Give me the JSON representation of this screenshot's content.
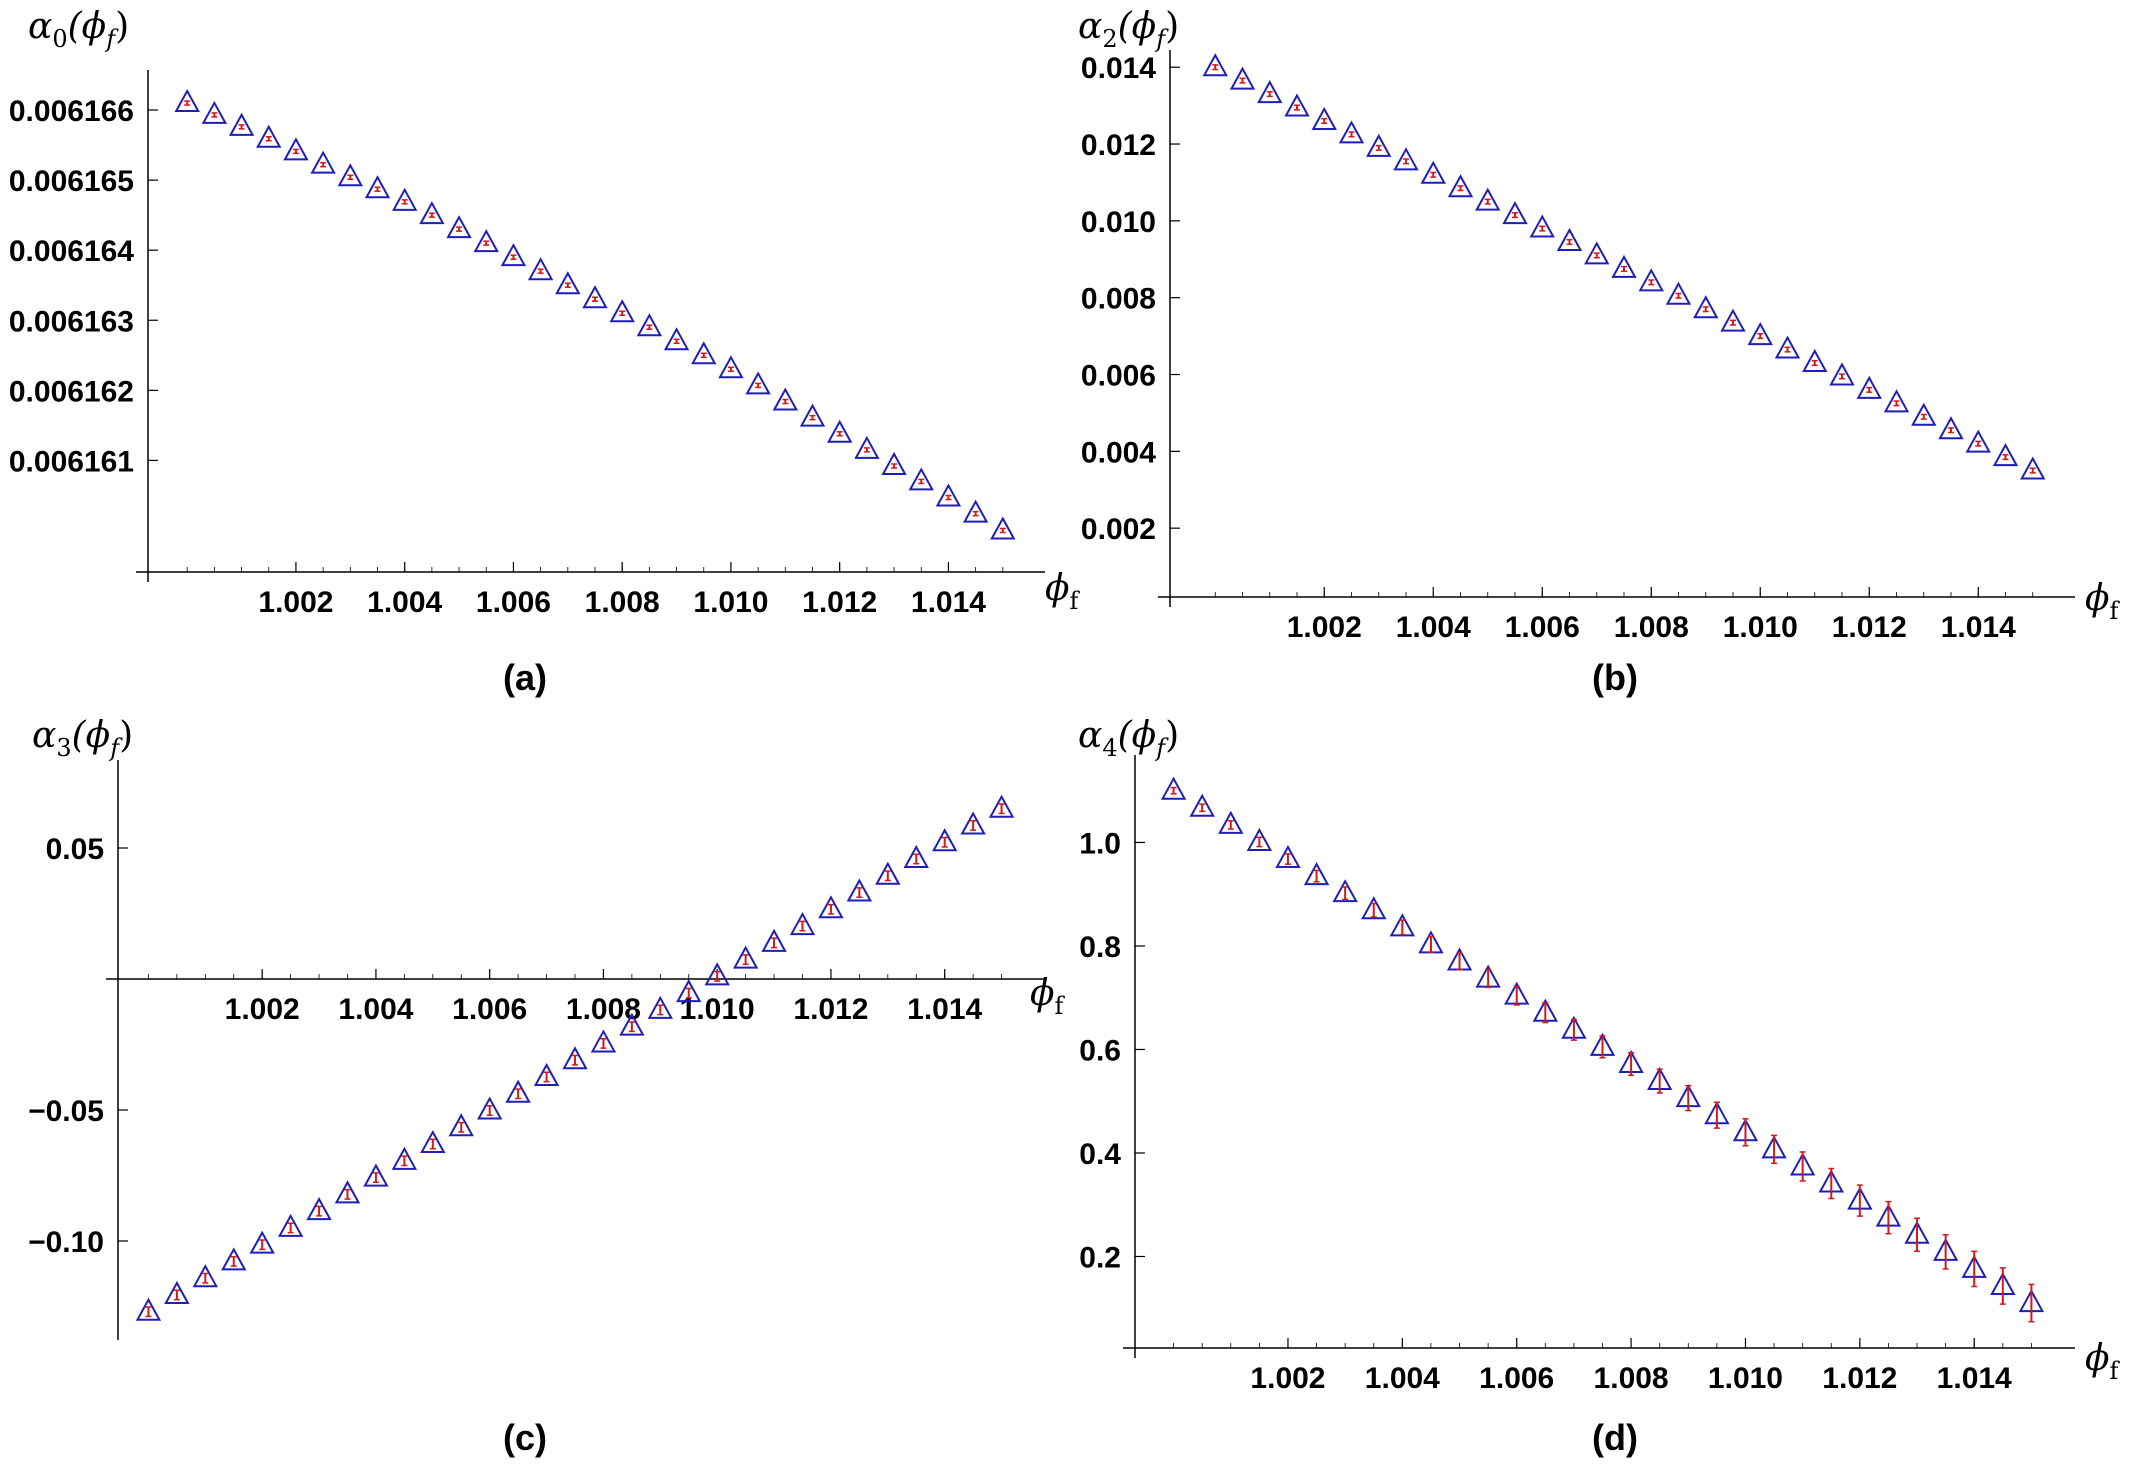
{
  "colors": {
    "marker_stroke": "#1f1fb8",
    "errorbar": "#d11a1a",
    "axis": "#000000",
    "background": "#ffffff"
  },
  "chart_data": [
    {
      "panel_label": "(a)",
      "type": "scatter",
      "ylabel": "α0(ϕf)",
      "ylabel_parts": {
        "base": "α",
        "sub": "0",
        "open": "(ϕ",
        "argsub": "f",
        "close": ")"
      },
      "xlabel_parts": {
        "base": "ϕ",
        "sub": "f"
      },
      "xlim": [
        0.9995,
        1.0155
      ],
      "ylim": [
        0.00615965,
        0.0061664
      ],
      "x_axis_at_y": 0.00615965,
      "x_ticks": [
        1.002,
        1.004,
        1.006,
        1.008,
        1.01,
        1.012,
        1.014
      ],
      "x_tick_labels": [
        "1.002",
        "1.004",
        "1.006",
        "1.008",
        "1.010",
        "1.012",
        "1.014"
      ],
      "y_ticks": [
        0.006161,
        0.006162,
        0.006163,
        0.006164,
        0.006165,
        0.006166
      ],
      "y_tick_labels": [
        "0.006161",
        "0.006162",
        "0.006163",
        "0.006164",
        "0.006165",
        "0.006166"
      ],
      "marker": "open-triangle",
      "series": [
        {
          "x": [
            1.0,
            1.0005,
            1.001,
            1.0015,
            1.002,
            1.0025,
            1.003,
            1.0035,
            1.004,
            1.0045,
            1.005,
            1.0055,
            1.006,
            1.0065,
            1.007,
            1.0075,
            1.008,
            1.0085,
            1.009,
            1.0095,
            1.01,
            1.0105,
            1.011,
            1.0115,
            1.012,
            1.0125,
            1.013,
            1.0135,
            1.014,
            1.0145,
            1.015
          ],
          "y": [
            0.0061661,
            0.00616593,
            0.00616576,
            0.00616559,
            0.00616541,
            0.00616522,
            0.00616504,
            0.00616487,
            0.00616469,
            0.0061645,
            0.0061643,
            0.0061641,
            0.0061639,
            0.0061637,
            0.0061635,
            0.0061633,
            0.0061631,
            0.0061629,
            0.0061627,
            0.0061625,
            0.0061623,
            0.00616207,
            0.00616184,
            0.00616161,
            0.00616138,
            0.00616115,
            0.00616092,
            0.0061607,
            0.00616047,
            0.00616024,
            0.00616
          ],
          "err": [
            1.2e-08,
            1.2e-08,
            1.2e-08,
            1.2e-08,
            1.2e-08,
            1.2e-08,
            1.2e-08,
            1.2e-08,
            1.2e-08,
            1.2e-08,
            1.2e-08,
            1.2e-08,
            1.2e-08,
            1.2e-08,
            1.2e-08,
            1.2e-08,
            1.2e-08,
            1.2e-08,
            1.2e-08,
            1.2e-08,
            1.2e-08,
            1.2e-08,
            1.2e-08,
            1.2e-08,
            1.2e-08,
            1.2e-08,
            1.2e-08,
            1.2e-08,
            1.2e-08,
            1.2e-08,
            1.2e-08
          ]
        }
      ]
    },
    {
      "panel_label": "(b)",
      "type": "scatter",
      "ylabel": "α2(ϕf)",
      "ylabel_parts": {
        "base": "α",
        "sub": "2",
        "open": "(ϕ",
        "argsub": "f",
        "close": ")"
      },
      "xlabel_parts": {
        "base": "ϕ",
        "sub": "f"
      },
      "xlim": [
        0.9995,
        1.0155
      ],
      "ylim": [
        0.0,
        0.0145
      ],
      "x_axis_at_y": 0.0,
      "x_ticks": [
        1.002,
        1.004,
        1.006,
        1.008,
        1.01,
        1.012,
        1.014
      ],
      "x_tick_labels": [
        "1.002",
        "1.004",
        "1.006",
        "1.008",
        "1.010",
        "1.012",
        "1.014"
      ],
      "y_ticks": [
        0.002,
        0.004,
        0.006,
        0.008,
        0.01,
        0.012,
        0.014
      ],
      "y_tick_labels": [
        "0.002",
        "0.004",
        "0.006",
        "0.008",
        "0.010",
        "0.012",
        "0.014"
      ],
      "marker": "open-triangle",
      "series": [
        {
          "x": [
            1.0,
            1.0005,
            1.001,
            1.0015,
            1.002,
            1.0025,
            1.003,
            1.0035,
            1.004,
            1.0045,
            1.005,
            1.0055,
            1.006,
            1.0065,
            1.007,
            1.0075,
            1.008,
            1.0085,
            1.009,
            1.0095,
            1.01,
            1.0105,
            1.011,
            1.0115,
            1.012,
            1.0125,
            1.013,
            1.0135,
            1.014,
            1.0145,
            1.015
          ],
          "y": [
            0.014,
            0.01365,
            0.0133,
            0.01295,
            0.0126,
            0.01225,
            0.0119,
            0.01155,
            0.0112,
            0.01085,
            0.0105,
            0.01015,
            0.0098,
            0.00945,
            0.0091,
            0.00875,
            0.0084,
            0.00805,
            0.0077,
            0.00735,
            0.007,
            0.00665,
            0.0063,
            0.00595,
            0.0056,
            0.00525,
            0.0049,
            0.00455,
            0.0042,
            0.00385,
            0.0035
          ],
          "err": [
            6e-05,
            6e-05,
            6e-05,
            6e-05,
            6e-05,
            6e-05,
            6e-05,
            6e-05,
            6e-05,
            6e-05,
            6e-05,
            6e-05,
            6e-05,
            6e-05,
            6e-05,
            6e-05,
            6e-05,
            6e-05,
            6e-05,
            6e-05,
            6e-05,
            6e-05,
            6e-05,
            6e-05,
            6e-05,
            6e-05,
            6e-05,
            6e-05,
            6e-05,
            6e-05,
            6e-05
          ]
        }
      ]
    },
    {
      "panel_label": "(c)",
      "type": "scatter",
      "ylabel": "α3(ϕf)",
      "ylabel_parts": {
        "base": "α",
        "sub": "3",
        "open": "(ϕ",
        "argsub": "f",
        "close": ")"
      },
      "xlabel_parts": {
        "base": "ϕ",
        "sub": "f"
      },
      "xlim": [
        0.9995,
        1.0155
      ],
      "ylim": [
        -0.14,
        0.08
      ],
      "x_axis_at_y": 0.0,
      "x_ticks": [
        1.002,
        1.004,
        1.006,
        1.008,
        1.01,
        1.012,
        1.014
      ],
      "x_tick_labels": [
        "1.002",
        "1.004",
        "1.006",
        "1.008",
        "1.010",
        "1.012",
        "1.014"
      ],
      "y_ticks": [
        -0.1,
        -0.05,
        0.05
      ],
      "y_tick_labels": [
        "−0.10",
        "−0.05",
        "0.05"
      ],
      "marker": "open-triangle",
      "series": [
        {
          "x": [
            1.0,
            1.0005,
            1.001,
            1.0015,
            1.002,
            1.0025,
            1.003,
            1.0035,
            1.004,
            1.0045,
            1.005,
            1.0055,
            1.006,
            1.0065,
            1.007,
            1.0075,
            1.008,
            1.0085,
            1.009,
            1.0095,
            1.01,
            1.0105,
            1.011,
            1.0115,
            1.012,
            1.0125,
            1.013,
            1.0135,
            1.014,
            1.0145,
            1.015
          ],
          "y": [
            -0.127,
            -0.1206,
            -0.1142,
            -0.1078,
            -0.1014,
            -0.095,
            -0.0886,
            -0.0822,
            -0.0758,
            -0.0694,
            -0.063,
            -0.0566,
            -0.0502,
            -0.0438,
            -0.0374,
            -0.031,
            -0.0246,
            -0.0182,
            -0.0118,
            -0.0054,
            0.001,
            0.0074,
            0.0138,
            0.0202,
            0.0266,
            0.033,
            0.0394,
            0.0458,
            0.0522,
            0.0586,
            0.065
          ],
          "err": [
            0.0018,
            0.0018,
            0.0018,
            0.0018,
            0.0018,
            0.0018,
            0.0018,
            0.0018,
            0.0018,
            0.0018,
            0.0018,
            0.0018,
            0.0018,
            0.0018,
            0.0018,
            0.0018,
            0.0018,
            0.0018,
            0.0018,
            0.0018,
            0.0018,
            0.0018,
            0.0018,
            0.0018,
            0.0018,
            0.0018,
            0.0018,
            0.0018,
            0.0018,
            0.0018,
            0.0018
          ]
        }
      ]
    },
    {
      "panel_label": "(d)",
      "type": "scatter",
      "ylabel": "α4(ϕf)",
      "ylabel_parts": {
        "base": "α",
        "sub": "4",
        "open": "(ϕ",
        "argsub": "f",
        "close": ")"
      },
      "xlabel_parts": {
        "base": "ϕ",
        "sub": "f"
      },
      "xlim": [
        0.9995,
        1.0155
      ],
      "ylim": [
        0.0,
        1.14
      ],
      "x_axis_at_y": 0.0,
      "x_ticks": [
        1.002,
        1.004,
        1.006,
        1.008,
        1.01,
        1.012,
        1.014
      ],
      "x_tick_labels": [
        "1.002",
        "1.004",
        "1.006",
        "1.008",
        "1.010",
        "1.012",
        "1.014"
      ],
      "y_ticks": [
        0.2,
        0.4,
        0.6,
        0.8,
        1.0
      ],
      "y_tick_labels": [
        "0.2",
        "0.4",
        "0.6",
        "0.8",
        "1.0"
      ],
      "marker": "open-triangle",
      "series": [
        {
          "x": [
            1.0,
            1.0005,
            1.001,
            1.0015,
            1.002,
            1.0025,
            1.003,
            1.0035,
            1.004,
            1.0045,
            1.005,
            1.0055,
            1.006,
            1.0065,
            1.007,
            1.0075,
            1.008,
            1.0085,
            1.009,
            1.0095,
            1.01,
            1.0105,
            1.011,
            1.0115,
            1.012,
            1.0125,
            1.013,
            1.0135,
            1.014,
            1.0145,
            1.015
          ],
          "y": [
            1.1,
            1.067,
            1.034,
            1.001,
            0.968,
            0.935,
            0.902,
            0.869,
            0.836,
            0.803,
            0.77,
            0.737,
            0.704,
            0.671,
            0.638,
            0.605,
            0.572,
            0.539,
            0.506,
            0.473,
            0.44,
            0.407,
            0.374,
            0.341,
            0.308,
            0.275,
            0.242,
            0.209,
            0.176,
            0.143,
            0.11
          ],
          "err": [
            0.006,
            0.007,
            0.008,
            0.009,
            0.01,
            0.011,
            0.012,
            0.013,
            0.014,
            0.015,
            0.016,
            0.017,
            0.018,
            0.019,
            0.02,
            0.021,
            0.022,
            0.023,
            0.024,
            0.025,
            0.026,
            0.027,
            0.028,
            0.029,
            0.03,
            0.031,
            0.032,
            0.033,
            0.034,
            0.035,
            0.036
          ]
        }
      ]
    }
  ]
}
